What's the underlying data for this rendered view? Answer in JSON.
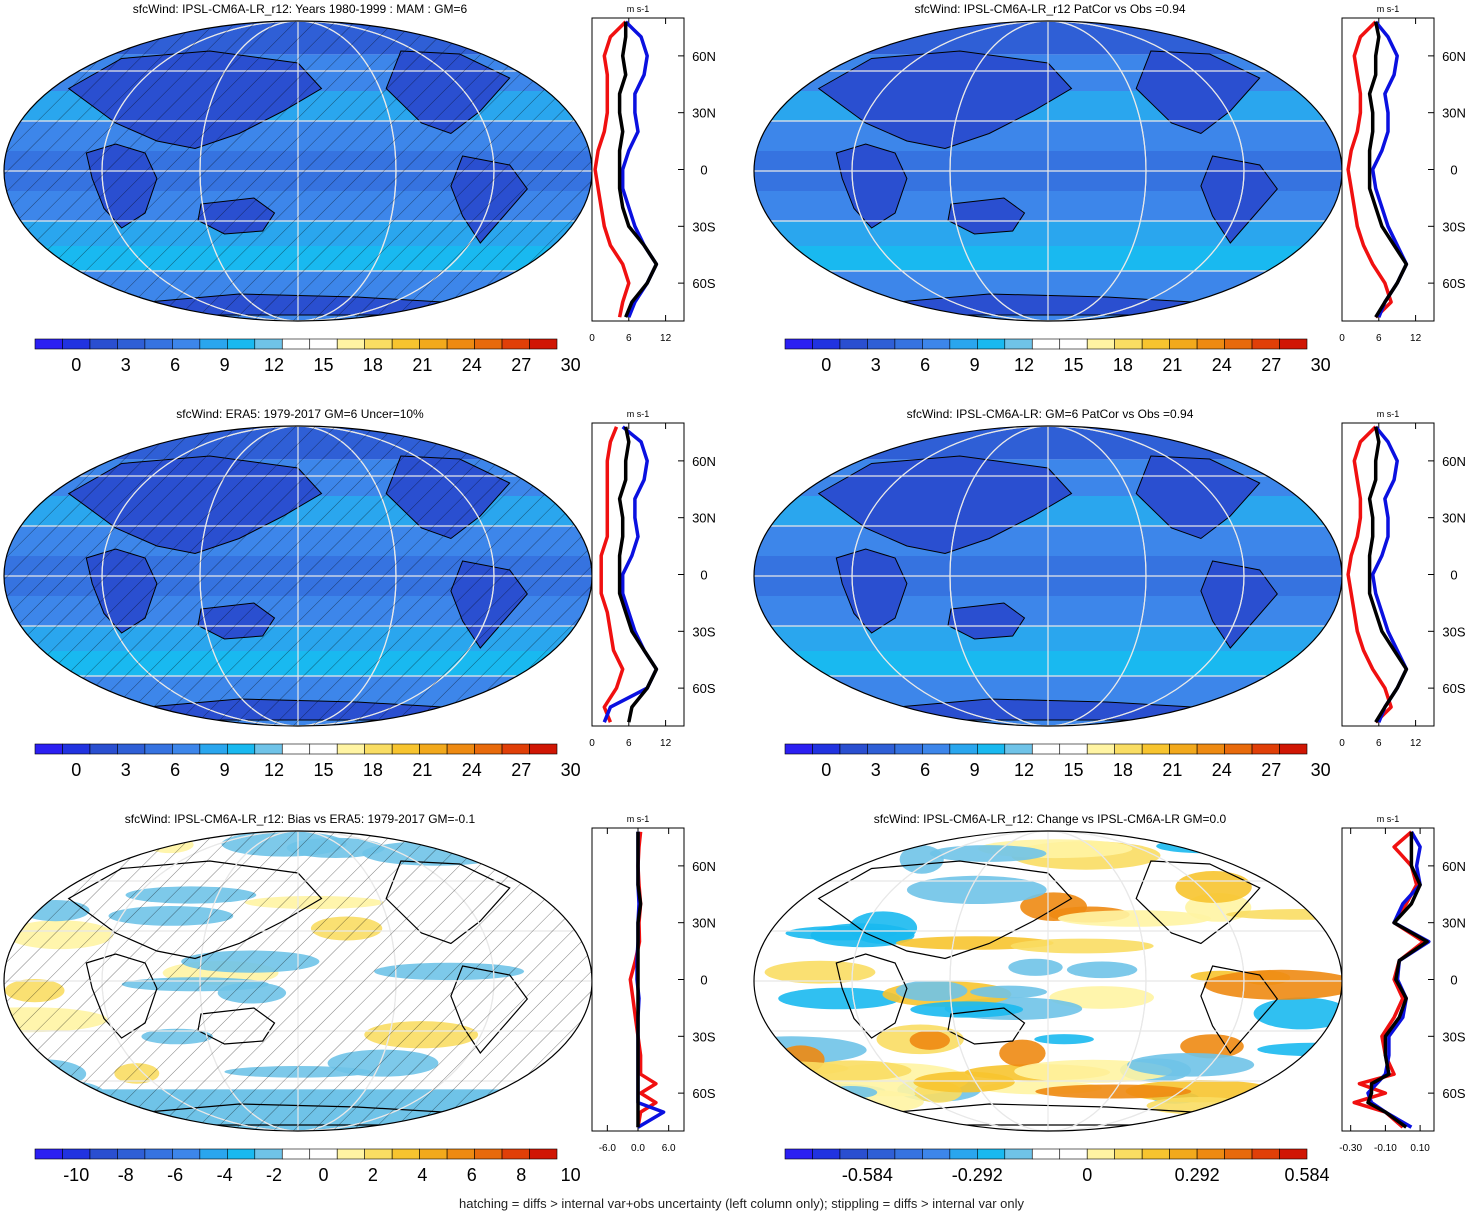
{
  "colors": {
    "full_field_scale": [
      "#2b1ff2",
      "#2133e0",
      "#2a4fd0",
      "#2f5fd6",
      "#3673e0",
      "#3d86ea",
      "#2aa6ee",
      "#19b9f0",
      "#6fc3e8",
      "#ffffff",
      "#ffffff",
      "#fff4a3",
      "#f9dd63",
      "#f7c42f",
      "#f2a91c",
      "#ee8a12",
      "#e86a0c",
      "#e03f08",
      "#d01604"
    ],
    "diff_scale": [
      "#2b1ff2",
      "#2133e0",
      "#2a4fd0",
      "#2f5fd6",
      "#3673e0",
      "#3d86ea",
      "#2aa6ee",
      "#19b9f0",
      "#6fc3e8",
      "#ffffff",
      "#ffffff",
      "#fff4a3",
      "#f9dd63",
      "#f7c42f",
      "#f2a91c",
      "#ee8a12",
      "#e86a0c",
      "#e03f08",
      "#d01604"
    ],
    "line_model": "#f01010",
    "line_obs": "#0a10e0",
    "line_mean": "#000000"
  },
  "panels": [
    {
      "title": "sfcWind: IPSL-CM6A-LR_r12: Years 1980-1999 : MAM : GM=6",
      "map_style": "full",
      "hatch": true,
      "colorbar_labels": [
        "0",
        "3",
        "6",
        "9",
        "12",
        "15",
        "18",
        "21",
        "24",
        "27",
        "30"
      ],
      "profile_unit": "m s-1",
      "profile_ticks": [
        "0",
        "6",
        "12"
      ],
      "lat_labels": [
        "60N",
        "30N",
        "0",
        "30S",
        "60S"
      ]
    },
    {
      "title": "sfcWind: IPSL-CM6A-LR_r12 PatCor vs Obs =0.94",
      "map_style": "full",
      "hatch": false,
      "colorbar_labels": [
        "0",
        "3",
        "6",
        "9",
        "12",
        "15",
        "18",
        "21",
        "24",
        "27",
        "30"
      ],
      "profile_unit": "m s-1",
      "profile_ticks": [
        "0",
        "6",
        "12"
      ],
      "lat_labels": [
        "60N",
        "30N",
        "0",
        "30S",
        "60S"
      ]
    },
    {
      "title": "sfcWind: ERA5: 1979-2017 GM=6 Uncer=10%",
      "map_style": "full",
      "hatch": true,
      "colorbar_labels": [
        "0",
        "3",
        "6",
        "9",
        "12",
        "15",
        "18",
        "21",
        "24",
        "27",
        "30"
      ],
      "profile_unit": "m s-1",
      "profile_ticks": [
        "0",
        "6",
        "12"
      ],
      "lat_labels": [
        "60N",
        "30N",
        "0",
        "30S",
        "60S"
      ]
    },
    {
      "title": "sfcWind: IPSL-CM6A-LR: GM=6 PatCor vs Obs =0.94",
      "map_style": "full",
      "hatch": false,
      "colorbar_labels": [
        "0",
        "3",
        "6",
        "9",
        "12",
        "15",
        "18",
        "21",
        "24",
        "27",
        "30"
      ],
      "profile_unit": "m s-1",
      "profile_ticks": [
        "0",
        "6",
        "12"
      ],
      "lat_labels": [
        "60N",
        "30N",
        "0",
        "30S",
        "60S"
      ]
    },
    {
      "title": "sfcWind: IPSL-CM6A-LR_r12: Bias vs ERA5: 1979-2017 GM=-0.1",
      "map_style": "bias",
      "hatch": true,
      "colorbar_labels": [
        "-10",
        "-8",
        "-6",
        "-4",
        "-2",
        "0",
        "2",
        "4",
        "6",
        "8",
        "10"
      ],
      "profile_unit": "m s-1",
      "profile_ticks": [
        "-6.0",
        "0.0",
        "6.0"
      ],
      "lat_labels": [
        "60N",
        "30N",
        "0",
        "30S",
        "60S"
      ]
    },
    {
      "title": "sfcWind: IPSL-CM6A-LR_r12: Change vs IPSL-CM6A-LR GM=0.0",
      "map_style": "change",
      "hatch": false,
      "colorbar_labels": [
        "-0.584",
        "-0.292",
        "0",
        "0.292",
        "0.584"
      ],
      "profile_unit": "m s-1",
      "profile_ticks": [
        "-0.30",
        "-0.10",
        "0.10"
      ],
      "lat_labels": [
        "60N",
        "30N",
        "0",
        "30S",
        "60S"
      ]
    }
  ],
  "chart_data": [
    {
      "type": "line",
      "title": "sfcWind: IPSL-CM6A-LR_r12: Years 1980-1999 : MAM : GM=6",
      "xlabel": "m s-1",
      "xlim": [
        0,
        15
      ],
      "ylim": [
        -80,
        80
      ],
      "series": [
        {
          "y": [
            78,
            70,
            60,
            50,
            40,
            30,
            20,
            10,
            0,
            -10,
            -20,
            -30,
            -40,
            -50,
            -60,
            -70,
            -78
          ],
          "x": [
            5.5,
            3,
            2,
            2.5,
            2.5,
            2.5,
            2,
            1,
            0.5,
            1,
            1.5,
            2,
            3,
            5,
            6,
            5,
            4.5
          ]
        },
        {
          "y": [
            78,
            70,
            60,
            50,
            40,
            30,
            20,
            10,
            0,
            -10,
            -20,
            -30,
            -40,
            -50,
            -60,
            -70,
            -78
          ],
          "x": [
            5.5,
            8,
            9,
            8.5,
            7,
            7,
            7.5,
            6,
            5,
            5,
            6,
            7,
            8.5,
            10.5,
            9,
            7,
            6
          ]
        },
        {
          "y": [
            78,
            70,
            60,
            50,
            40,
            30,
            20,
            10,
            0,
            -10,
            -20,
            -30,
            -40,
            -50,
            -60,
            -70,
            -78
          ],
          "x": [
            5.5,
            5.5,
            5,
            5.5,
            4.5,
            4.5,
            5,
            4.5,
            4.5,
            4.5,
            5,
            6,
            8.5,
            10.5,
            9,
            6.5,
            5.5
          ]
        }
      ]
    },
    {
      "type": "line",
      "title": "sfcWind: IPSL-CM6A-LR_r12 PatCor vs Obs =0.94",
      "xlabel": "m s-1",
      "xlim": [
        0,
        15
      ],
      "ylim": [
        -80,
        80
      ],
      "series": [
        {
          "y": [
            78,
            70,
            60,
            50,
            40,
            30,
            20,
            10,
            0,
            -10,
            -20,
            -30,
            -40,
            -50,
            -60,
            -70,
            -78
          ],
          "x": [
            5.5,
            3,
            2,
            2.5,
            3,
            3,
            2.5,
            1.5,
            1,
            1.5,
            2,
            2.5,
            3.5,
            5,
            7,
            8,
            5.5
          ]
        },
        {
          "y": [
            78,
            70,
            60,
            50,
            40,
            30,
            20,
            10,
            0,
            -10,
            -20,
            -30,
            -40,
            -50,
            -60,
            -70,
            -78
          ],
          "x": [
            5.5,
            7.5,
            9,
            8.5,
            7,
            7.5,
            7.5,
            6.5,
            5,
            5.5,
            6.5,
            7.5,
            9,
            10.5,
            9,
            7,
            6
          ]
        },
        {
          "y": [
            78,
            70,
            60,
            50,
            40,
            30,
            20,
            10,
            0,
            -10,
            -20,
            -30,
            -40,
            -50,
            -60,
            -70,
            -78
          ],
          "x": [
            5.5,
            6,
            5.5,
            5.5,
            4.5,
            5,
            5,
            4.5,
            4.5,
            4.5,
            5.5,
            6.5,
            8.5,
            10.5,
            9,
            7,
            5.5
          ]
        }
      ]
    },
    {
      "type": "line",
      "title": "sfcWind: ERA5: 1979-2017 GM=6 Uncer=10%",
      "xlabel": "m s-1",
      "xlim": [
        0,
        15
      ],
      "ylim": [
        -80,
        80
      ],
      "series": [
        {
          "y": [
            78,
            70,
            60,
            50,
            40,
            30,
            20,
            10,
            0,
            -10,
            -20,
            -30,
            -40,
            -50,
            -60,
            -70,
            -78
          ],
          "x": [
            4,
            3,
            2.5,
            2.5,
            2.5,
            2.5,
            2.5,
            1.5,
            1.5,
            1.5,
            2.5,
            3,
            3.5,
            5,
            4,
            2,
            3
          ]
        },
        {
          "y": [
            78,
            70,
            60,
            50,
            40,
            30,
            20,
            10,
            0,
            -10,
            -20,
            -30,
            -40,
            -50,
            -60,
            -70,
            -78
          ],
          "x": [
            5,
            8,
            9,
            8.5,
            7,
            7,
            7.5,
            6.5,
            5,
            5,
            6,
            7,
            8.5,
            10.5,
            9,
            3,
            2
          ]
        },
        {
          "y": [
            78,
            70,
            60,
            50,
            40,
            30,
            20,
            10,
            0,
            -10,
            -20,
            -30,
            -40,
            -50,
            -60,
            -70,
            -78
          ],
          "x": [
            5.5,
            6,
            5.5,
            5.5,
            4.5,
            5,
            5,
            4.5,
            4.5,
            4.5,
            5.5,
            6.5,
            8.5,
            10.5,
            9,
            6.5,
            6
          ]
        }
      ]
    },
    {
      "type": "line",
      "title": "sfcWind: IPSL-CM6A-LR: GM=6 PatCor vs Obs =0.94",
      "xlabel": "m s-1",
      "xlim": [
        0,
        15
      ],
      "ylim": [
        -80,
        80
      ],
      "series": [
        {
          "y": [
            78,
            70,
            60,
            50,
            40,
            30,
            20,
            10,
            0,
            -10,
            -20,
            -30,
            -40,
            -50,
            -60,
            -70,
            -78
          ],
          "x": [
            5.5,
            3,
            2,
            2.5,
            3,
            3,
            2.5,
            1.5,
            1,
            1.5,
            2,
            2.5,
            3.5,
            5,
            7,
            8,
            5.5
          ]
        },
        {
          "y": [
            78,
            70,
            60,
            50,
            40,
            30,
            20,
            10,
            0,
            -10,
            -20,
            -30,
            -40,
            -50,
            -60,
            -70,
            -78
          ],
          "x": [
            5.5,
            7.5,
            9,
            8.5,
            7,
            7.5,
            7.5,
            6.5,
            5,
            5.5,
            6.5,
            7.5,
            9,
            10.5,
            9,
            7,
            6
          ]
        },
        {
          "y": [
            78,
            70,
            60,
            50,
            40,
            30,
            20,
            10,
            0,
            -10,
            -20,
            -30,
            -40,
            -50,
            -60,
            -70,
            -78
          ],
          "x": [
            5.5,
            6,
            5.5,
            5.5,
            4.5,
            5,
            5,
            4.5,
            4.5,
            4.5,
            5.5,
            6.5,
            8.5,
            10.5,
            9,
            7,
            5.5
          ]
        }
      ]
    },
    {
      "type": "line",
      "title": "sfcWind: IPSL-CM6A-LR_r12: Bias vs ERA5: 1979-2017 GM=-0.1",
      "xlabel": "m s-1",
      "xlim": [
        -9,
        9
      ],
      "ylim": [
        -80,
        80
      ],
      "series": [
        {
          "y": [
            78,
            70,
            60,
            50,
            40,
            30,
            20,
            10,
            0,
            -10,
            -20,
            -30,
            -40,
            -50,
            -55,
            -60,
            -65,
            -70,
            -78
          ],
          "x": [
            0.5,
            0.2,
            0,
            0.2,
            0.5,
            0.2,
            0.3,
            -0.5,
            -1.5,
            -1,
            -0.5,
            0,
            0.5,
            0.5,
            3.5,
            0.5,
            3.5,
            0.5,
            0
          ]
        },
        {
          "y": [
            78,
            70,
            60,
            50,
            40,
            30,
            20,
            10,
            0,
            -10,
            -20,
            -30,
            -40,
            -50,
            -55,
            -60,
            -65,
            -70,
            -78
          ],
          "x": [
            0,
            0,
            0,
            0,
            0.2,
            0,
            0,
            -0.2,
            -0.2,
            0.2,
            0,
            0,
            0,
            0,
            0,
            0,
            0,
            5,
            0
          ]
        },
        {
          "y": [
            78,
            70,
            60,
            50,
            40,
            30,
            20,
            10,
            0,
            -10,
            -20,
            -30,
            -40,
            -50,
            -55,
            -60,
            -65,
            -70,
            -78
          ],
          "x": [
            0,
            0,
            0,
            0,
            0.5,
            0,
            0,
            0,
            0,
            0,
            0,
            0,
            0,
            0,
            0,
            0,
            0,
            0,
            0
          ]
        }
      ]
    },
    {
      "type": "line",
      "title": "sfcWind: IPSL-CM6A-LR_r12: Change vs IPSL-CM6A-LR GM=0.0",
      "xlabel": "m s-1",
      "xlim": [
        -0.35,
        0.18
      ],
      "ylim": [
        -80,
        80
      ],
      "series": [
        {
          "y": [
            78,
            70,
            60,
            50,
            40,
            30,
            20,
            10,
            0,
            -10,
            -20,
            -30,
            -40,
            -50,
            -55,
            -60,
            -65,
            -70,
            -78
          ],
          "x": [
            0.05,
            -0.05,
            0.05,
            0.08,
            0.02,
            -0.05,
            0.12,
            -0.02,
            -0.05,
            0,
            -0.05,
            -0.12,
            -0.1,
            -0.05,
            -0.25,
            -0.1,
            -0.28,
            -0.1,
            0
          ]
        },
        {
          "y": [
            78,
            70,
            60,
            50,
            40,
            30,
            20,
            10,
            0,
            -10,
            -20,
            -30,
            -40,
            -50,
            -55,
            -60,
            -65,
            -70,
            -78
          ],
          "x": [
            0.05,
            0.1,
            0.08,
            0.1,
            0,
            -0.05,
            0.15,
            -0.02,
            -0.03,
            0.02,
            0,
            -0.08,
            -0.08,
            -0.1,
            -0.15,
            -0.2,
            -0.18,
            -0.1,
            0.05
          ]
        },
        {
          "y": [
            78,
            70,
            60,
            50,
            40,
            30,
            20,
            10,
            0,
            -10,
            -20,
            -30,
            -40,
            -50,
            -55,
            -60,
            -65,
            -70,
            -78
          ],
          "x": [
            0.05,
            0.05,
            0.05,
            0.1,
            0.05,
            -0.05,
            0.14,
            -0.02,
            -0.04,
            0.02,
            -0.02,
            -0.1,
            -0.1,
            -0.08,
            -0.18,
            -0.18,
            -0.2,
            -0.1,
            0.02
          ]
        }
      ]
    }
  ],
  "footer": "hatching = diffs > internal var+obs uncertainty (left column only); stippling = diffs > internal var only"
}
